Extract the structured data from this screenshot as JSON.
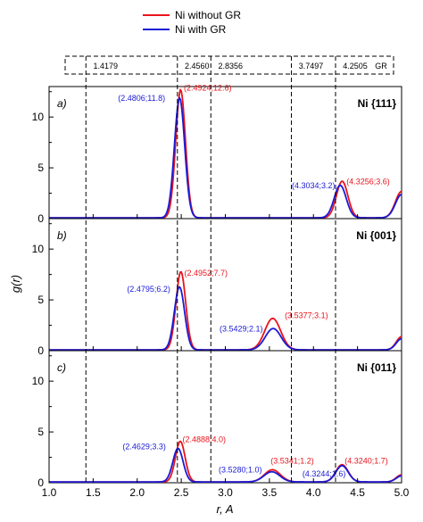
{
  "legend": [
    {
      "label": "Ni without GR",
      "color": "#e8141c"
    },
    {
      "label": "Ni with GR",
      "color": "#1a1ad6"
    }
  ],
  "gr_strip": {
    "values": [
      "1.4179",
      "2.4560",
      "2.8356",
      "3.7497",
      "4.2505"
    ],
    "positions": [
      1.4179,
      2.456,
      2.8356,
      3.7497,
      4.2505
    ],
    "end_label": "GR"
  },
  "chart_data": [
    {
      "type": "line",
      "panel_label": "a)",
      "plane": "Ni {111}",
      "xlim": [
        1.0,
        5.0
      ],
      "ylim": [
        0,
        13
      ],
      "yticks": [
        0,
        5,
        10
      ],
      "series": [
        {
          "name": "Ni without GR",
          "color": "#e8141c",
          "peaks": [
            [
              2.4924,
              12.6,
              0.055
            ],
            [
              4.3256,
              3.6,
              0.065
            ],
            [
              5.0,
              2.6,
              0.07
            ]
          ]
        },
        {
          "name": "Ni with GR",
          "color": "#1a1ad6",
          "peaks": [
            [
              2.4806,
              11.8,
              0.058
            ],
            [
              4.3034,
              3.2,
              0.068
            ],
            [
              5.0,
              2.3,
              0.07
            ]
          ]
        }
      ],
      "annotations": [
        {
          "text": "(2.4806;11.8)",
          "color": "#1a1ad6"
        },
        {
          "text": "(2.4924;12.6)",
          "color": "#e8141c"
        },
        {
          "text": "(4.3034;3.2)",
          "color": "#1a1ad6"
        },
        {
          "text": "(4.3256;3.6)",
          "color": "#e8141c"
        }
      ]
    },
    {
      "type": "line",
      "panel_label": "b)",
      "plane": "Ni {001}",
      "xlim": [
        1.0,
        5.0
      ],
      "ylim": [
        0,
        13
      ],
      "yticks": [
        0,
        5,
        10
      ],
      "series": [
        {
          "name": "Ni without GR",
          "color": "#e8141c",
          "peaks": [
            [
              2.4952,
              7.7,
              0.055
            ],
            [
              3.5377,
              3.1,
              0.09
            ],
            [
              5.0,
              1.3,
              0.06
            ]
          ]
        },
        {
          "name": "Ni with GR",
          "color": "#1a1ad6",
          "peaks": [
            [
              2.4795,
              6.2,
              0.058
            ],
            [
              3.5429,
              2.1,
              0.09
            ],
            [
              5.0,
              1.1,
              0.06
            ]
          ]
        }
      ],
      "annotations": [
        {
          "text": "(2.4795;6.2)",
          "color": "#1a1ad6"
        },
        {
          "text": "(2.4952;7.7)",
          "color": "#e8141c"
        },
        {
          "text": "(3.5429;2.1)",
          "color": "#1a1ad6"
        },
        {
          "text": "(3.5377;3.1)",
          "color": "#e8141c"
        }
      ]
    },
    {
      "type": "line",
      "panel_label": "c)",
      "plane": "Ni {011}",
      "xlim": [
        1.0,
        5.0
      ],
      "ylim": [
        0,
        13
      ],
      "yticks": [
        0,
        5,
        10
      ],
      "series": [
        {
          "name": "Ni without GR",
          "color": "#e8141c",
          "peaks": [
            [
              2.4888,
              4.0,
              0.055
            ],
            [
              3.5341,
              1.2,
              0.09
            ],
            [
              4.324,
              1.7,
              0.07
            ],
            [
              5.0,
              0.7,
              0.06
            ]
          ]
        },
        {
          "name": "Ni with GR",
          "color": "#1a1ad6",
          "peaks": [
            [
              2.4629,
              3.3,
              0.058
            ],
            [
              3.528,
              1.0,
              0.09
            ],
            [
              4.3244,
              1.6,
              0.07
            ],
            [
              5.0,
              0.6,
              0.06
            ]
          ]
        }
      ],
      "annotations": [
        {
          "text": "(2.4629;3.3)",
          "color": "#1a1ad6"
        },
        {
          "text": "(2.4888;4.0)",
          "color": "#e8141c"
        },
        {
          "text": "(3.5280;1.0)",
          "color": "#1a1ad6"
        },
        {
          "text": "(3.5341;1.2)",
          "color": "#e8141c"
        },
        {
          "text": "(4.3244;1.6)",
          "color": "#1a1ad6"
        },
        {
          "text": "(4.3240;1.7)",
          "color": "#e8141c"
        }
      ]
    }
  ],
  "axes": {
    "xlabel": "r, A",
    "ylabel": "g(r)",
    "xticks": [
      "1.0",
      "1.5",
      "2.0",
      "2.5",
      "3.0",
      "3.5",
      "4.0",
      "4.5",
      "5.0"
    ]
  }
}
